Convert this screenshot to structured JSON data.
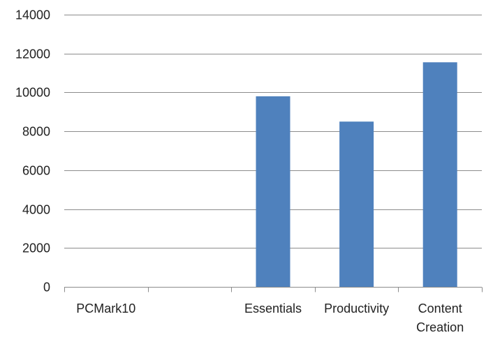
{
  "chart_data": {
    "type": "bar",
    "categories": [
      "PCMark10",
      "",
      "Essentials",
      "Productivity",
      "Content Creation"
    ],
    "category_lines": [
      [
        "PCMark10"
      ],
      [
        ""
      ],
      [
        "Essentials"
      ],
      [
        "Productivity"
      ],
      [
        "Content",
        "Creation"
      ]
    ],
    "values": [
      null,
      null,
      9800,
      8500,
      11550
    ],
    "ylim": [
      0,
      14000
    ],
    "yticks": [
      0,
      2000,
      4000,
      6000,
      8000,
      10000,
      12000,
      14000
    ],
    "grid": true,
    "legend": "none",
    "colors": {
      "bar": "#4f81bd",
      "grid": "#8c8c8c",
      "axis": "#8c8c8c"
    }
  }
}
